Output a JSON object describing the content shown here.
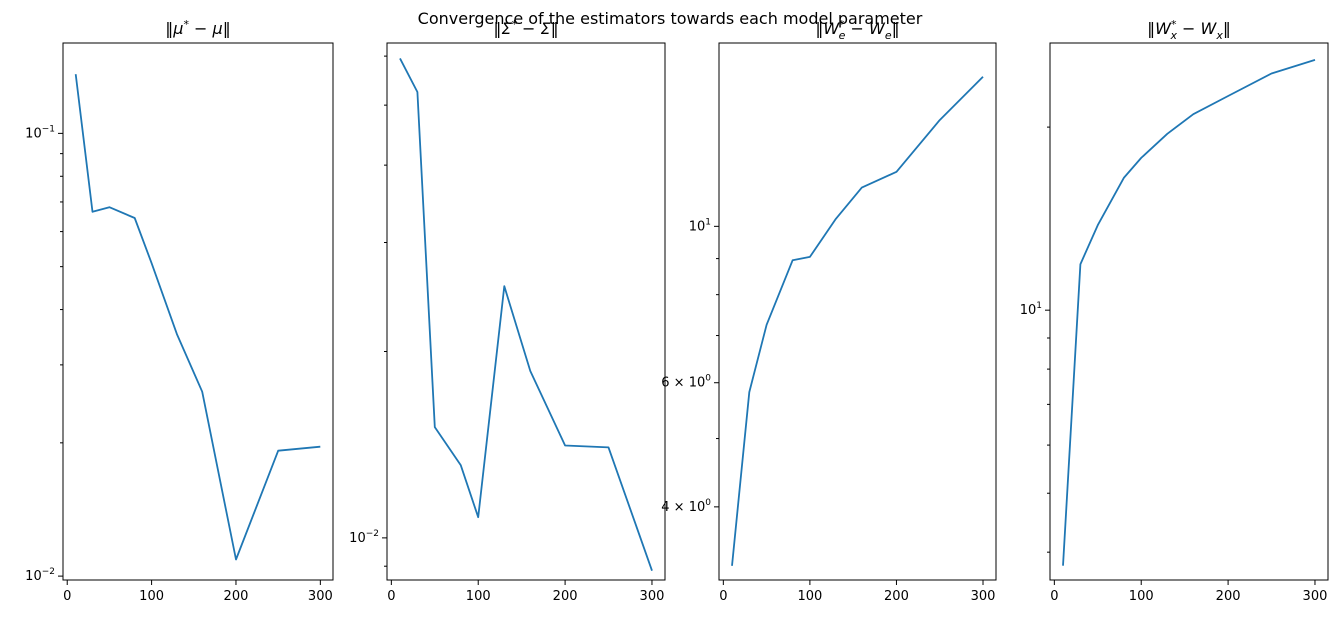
{
  "figure_title": "Convergence of the estimators towards each model parameter",
  "chart_data": [
    {
      "type": "line",
      "title": "‖μ* − μ‖",
      "title_parts": {
        "open": "‖",
        "sym": "μ",
        "sup": "*",
        "mid": " − ",
        "sym2": "μ",
        "sub": "",
        "sub2": "",
        "close": "‖"
      },
      "x": [
        10,
        30,
        50,
        80,
        100,
        130,
        160,
        200,
        250,
        300
      ],
      "y": [
        0.136,
        0.0665,
        0.0681,
        0.0644,
        0.0509,
        0.0352,
        0.0261,
        0.0109,
        0.0192,
        0.0196
      ],
      "xlim": [
        -5,
        315
      ],
      "ylim": [
        0.0098,
        0.16
      ],
      "yscale": "log",
      "xticks": [
        0,
        100,
        200,
        300
      ],
      "xtick_labels": [
        "0",
        "100",
        "200",
        "300"
      ],
      "yticks": [
        0.1,
        0.01
      ],
      "ytick_labels": [
        {
          "base": "10",
          "exp": "−1"
        },
        {
          "base": "10",
          "exp": "−2"
        }
      ],
      "grid": false,
      "color": "#1f77b4"
    },
    {
      "type": "line",
      "title": "‖Σ* − Σ‖",
      "title_parts": {
        "open": "‖",
        "sym": "Σ",
        "sup": "*",
        "mid": " − ",
        "sym2": "Σ",
        "sub": "",
        "sub2": "",
        "close": "‖"
      },
      "x": [
        10,
        30,
        50,
        80,
        100,
        130,
        160,
        200,
        250,
        300
      ],
      "y": [
        0.0595,
        0.0525,
        0.0151,
        0.0131,
        0.0108,
        0.0255,
        0.0186,
        0.0141,
        0.014,
        0.00885
      ],
      "xlim": [
        -5,
        315
      ],
      "ylim": [
        0.00855,
        0.063
      ],
      "yscale": "log",
      "xticks": [
        0,
        100,
        200,
        300
      ],
      "xtick_labels": [
        "0",
        "100",
        "200",
        "300"
      ],
      "yticks": [
        0.01
      ],
      "ytick_labels": [
        {
          "base": "10",
          "exp": "−2"
        }
      ],
      "grid": false,
      "color": "#1f77b4"
    },
    {
      "type": "line",
      "title": "‖W*e − We‖",
      "title_parts": {
        "open": "‖",
        "sym": "W",
        "sup": "*",
        "mid": " − ",
        "sym2": "W",
        "sub": "e",
        "sub2": "e",
        "close": "‖"
      },
      "x": [
        10,
        30,
        50,
        80,
        100,
        130,
        160,
        200,
        250,
        300
      ],
      "y": [
        3.3,
        5.82,
        7.25,
        8.95,
        9.05,
        10.25,
        11.35,
        11.95,
        14.15,
        16.3
      ],
      "xlim": [
        -5,
        315
      ],
      "ylim": [
        3.15,
        18.2
      ],
      "yscale": "log",
      "xticks": [
        0,
        100,
        200,
        300
      ],
      "xtick_labels": [
        "0",
        "100",
        "200",
        "300"
      ],
      "yticks": [
        10,
        6,
        4
      ],
      "ytick_labels": [
        {
          "base": "10",
          "exp": "1"
        },
        {
          "base": "6 × 10",
          "exp": "0"
        },
        {
          "base": "4 × 10",
          "exp": "0"
        }
      ],
      "grid": false,
      "color": "#1f77b4"
    },
    {
      "type": "line",
      "title": "‖W*x − Wx‖",
      "title_parts": {
        "open": "‖",
        "sym": "W",
        "sup": "*",
        "mid": " − ",
        "sym2": "W",
        "sub": "x",
        "sub2": "x",
        "close": "‖"
      },
      "x": [
        10,
        30,
        50,
        80,
        100,
        130,
        160,
        200,
        250,
        300
      ],
      "y": [
        3.8,
        11.9,
        13.8,
        16.5,
        17.8,
        19.5,
        21.0,
        22.5,
        24.5,
        25.8
      ],
      "xlim": [
        -5,
        315
      ],
      "ylim": [
        3.6,
        27.5
      ],
      "yscale": "log",
      "xticks": [
        0,
        100,
        200,
        300
      ],
      "xtick_labels": [
        "0",
        "100",
        "200",
        "300"
      ],
      "yticks": [
        10
      ],
      "ytick_labels": [
        {
          "base": "10",
          "exp": "1"
        }
      ],
      "grid": false,
      "color": "#1f77b4"
    }
  ]
}
